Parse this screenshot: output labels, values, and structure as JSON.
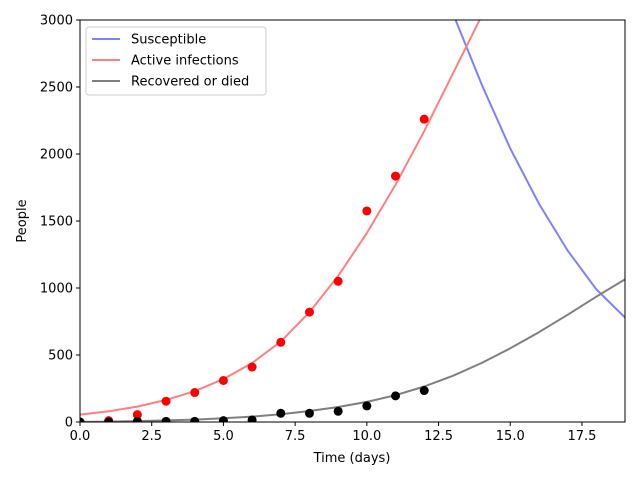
{
  "chart_data": {
    "type": "line",
    "title": "",
    "xlabel": "Time (days)",
    "ylabel": "People",
    "xlim": [
      0,
      19
    ],
    "ylim": [
      0,
      3000
    ],
    "grid": false,
    "legend_position": "top-left",
    "x_ticks": [
      0,
      2.5,
      5,
      7.5,
      10,
      12.5,
      15,
      17.5
    ],
    "x_tick_labels": [
      "0.0",
      "2.5",
      "5.0",
      "7.5",
      "10.0",
      "12.5",
      "15.0",
      "17.5"
    ],
    "y_ticks": [
      0,
      500,
      1000,
      1500,
      2000,
      2500,
      3000
    ],
    "y_tick_labels": [
      "0",
      "500",
      "1000",
      "1500",
      "2000",
      "2500",
      "3000"
    ],
    "series": [
      {
        "name": "Susceptible",
        "kind": "line",
        "color": "#7f7fff",
        "x": [
          13,
          14,
          15,
          16,
          17,
          18,
          19
        ],
        "y": [
          3050,
          2520,
          2040,
          1630,
          1280,
          990,
          780
        ]
      },
      {
        "name": "Active infections",
        "kind": "line",
        "color": "#ff7f7f",
        "x": [
          0,
          1,
          2,
          3,
          4,
          5,
          6,
          7,
          8,
          9,
          10,
          11,
          12,
          13,
          14,
          15
        ],
        "y": [
          55,
          80,
          115,
          165,
          230,
          320,
          440,
          600,
          820,
          1090,
          1410,
          1770,
          2170,
          2600,
          3030,
          3460
        ]
      },
      {
        "name": "Recovered or died",
        "kind": "line",
        "color": "#7f7f7f",
        "x": [
          0,
          1,
          2,
          3,
          4,
          5,
          6,
          7,
          8,
          9,
          10,
          11,
          12,
          13,
          14,
          15,
          16,
          17,
          18,
          19
        ],
        "y": [
          0,
          3,
          7,
          12,
          18,
          28,
          40,
          58,
          82,
          112,
          150,
          200,
          265,
          345,
          440,
          550,
          670,
          800,
          935,
          1065
        ]
      },
      {
        "name": "",
        "kind": "scatter",
        "color": "#ff0000",
        "x": [
          0,
          1,
          2,
          3,
          4,
          5,
          6,
          7,
          8,
          9,
          10,
          11,
          12
        ],
        "y": [
          0,
          10,
          55,
          155,
          220,
          310,
          410,
          595,
          820,
          1050,
          1575,
          1835,
          2260
        ]
      },
      {
        "name": "",
        "kind": "scatter",
        "color": "#000000",
        "x": [
          0,
          1,
          2,
          3,
          4,
          5,
          6,
          7,
          8,
          9,
          10,
          11,
          12
        ],
        "y": [
          0,
          0,
          5,
          5,
          5,
          10,
          15,
          65,
          65,
          80,
          120,
          195,
          235
        ]
      }
    ]
  }
}
